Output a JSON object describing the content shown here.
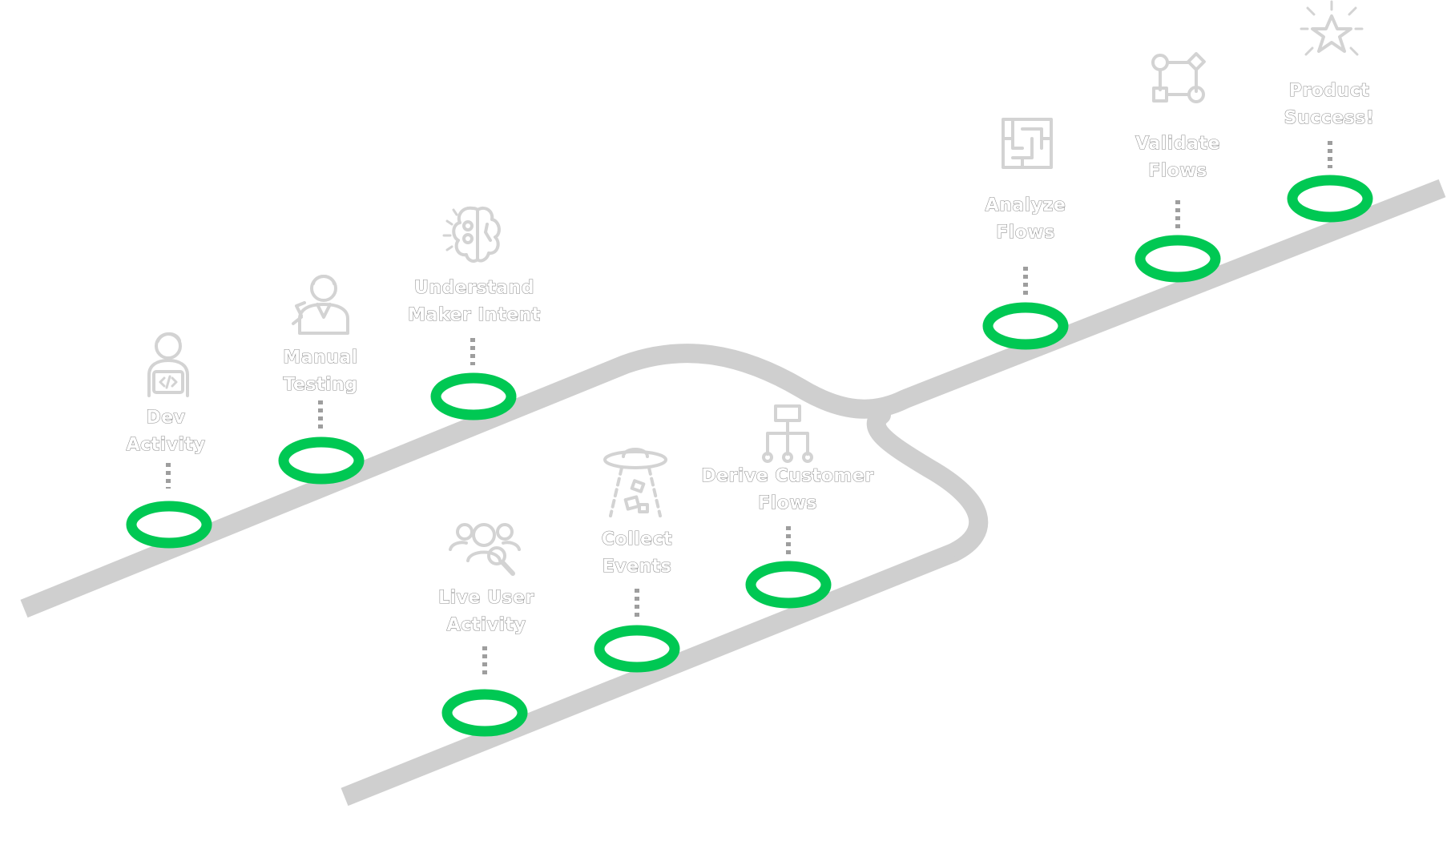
{
  "colors": {
    "road": "#cfcfcf",
    "marker": "#00c853",
    "connector": "#9e9e9e",
    "icon": "#d3d3d3",
    "label_fill": "#ffffff",
    "label_outline": "#8c8c8c",
    "background": "#ffffff"
  },
  "milestones": [
    {
      "id": "dev-activity",
      "lines": [
        "Dev",
        "Activity"
      ],
      "icon": "developer-laptop-icon"
    },
    {
      "id": "manual-testing",
      "lines": [
        "Manual",
        "Testing"
      ],
      "icon": "scientist-icon"
    },
    {
      "id": "understand-maker-intent",
      "lines": [
        "Understand",
        "Maker Intent"
      ],
      "icon": "brain-icon"
    },
    {
      "id": "live-user-activity",
      "lines": [
        "Live User",
        "Activity"
      ],
      "icon": "users-magnifier-icon"
    },
    {
      "id": "collect-events",
      "lines": [
        "Collect",
        "Events"
      ],
      "icon": "ufo-beam-icon"
    },
    {
      "id": "derive-customer-flows",
      "lines": [
        "Derive Customer",
        "Flows"
      ],
      "icon": "hierarchy-icon"
    },
    {
      "id": "analyze-flows",
      "lines": [
        "Analyze",
        "Flows"
      ],
      "icon": "maze-icon"
    },
    {
      "id": "validate-flows",
      "lines": [
        "Validate",
        "Flows"
      ],
      "icon": "flow-nodes-icon"
    },
    {
      "id": "product-success",
      "lines": [
        "Product",
        "Success!"
      ],
      "icon": "star-burst-icon"
    }
  ]
}
